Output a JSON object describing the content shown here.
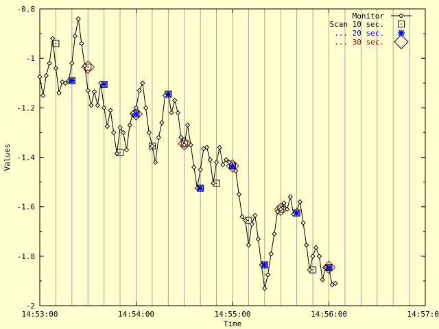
{
  "colors": {
    "background": "#ffffd0",
    "plot_border": "#000000",
    "grid": "#a0a0a0",
    "monitor": "#000000",
    "scan10": "#000000",
    "scan20": "#0000ff",
    "scan30": "#a00000"
  },
  "chart_data": {
    "type": "line",
    "xlabel": "Time",
    "ylabel": "Values",
    "x_range_seconds_of_day": [
      53580,
      53820
    ],
    "ylim": [
      -2,
      -0.8
    ],
    "y_ticks": [
      -0.8,
      -1,
      -1.2,
      -1.4,
      -1.6,
      -1.8,
      -2
    ],
    "y_tick_labels": [
      "-0.8",
      "-1",
      "-1.2",
      "-1.4",
      "-1.6",
      "-1.8",
      "-2"
    ],
    "x_ticks": [
      53580,
      53640,
      53700,
      53760,
      53820
    ],
    "x_tick_labels": [
      "14:53:00",
      "14:54:00",
      "14:55:00",
      "14:56:00",
      "14:57:00"
    ],
    "grid": "vertical lines every 10 seconds",
    "legend_position": "top-right",
    "legend": [
      {
        "label": "Monitor",
        "marker": "diamond-line"
      },
      {
        "label": "Scan 10 sec.",
        "marker": "square"
      },
      {
        "label": "... 20 sec.",
        "marker": "star"
      },
      {
        "label": "... 30 sec.",
        "marker": "big-diamond"
      }
    ],
    "series": [
      {
        "name": "Monitor",
        "points": [
          [
            "14:53:00",
            -1.075
          ],
          [
            "14:53:02",
            -1.15
          ],
          [
            "14:53:04",
            -1.07
          ],
          [
            "14:53:06",
            -1.02
          ],
          [
            "14:53:08",
            -0.92
          ],
          [
            "14:53:10",
            -1.04
          ],
          [
            "14:53:12",
            -1.14
          ],
          [
            "14:53:14",
            -1.095
          ],
          [
            "14:53:16",
            -1.1
          ],
          [
            "14:53:18",
            -1.09
          ],
          [
            "14:53:20",
            -1.02
          ],
          [
            "14:53:22",
            -0.91
          ],
          [
            "14:53:24",
            -0.84
          ],
          [
            "14:53:26",
            -0.94
          ],
          [
            "14:53:28",
            -1.03
          ],
          [
            "14:53:30",
            -1.13
          ],
          [
            "14:53:32",
            -1.19
          ],
          [
            "14:53:34",
            -1.135
          ],
          [
            "14:53:36",
            -1.19
          ],
          [
            "14:53:38",
            -1.1
          ],
          [
            "14:53:40",
            -1.2
          ],
          [
            "14:53:42",
            -1.275
          ],
          [
            "14:53:44",
            -1.21
          ],
          [
            "14:53:46",
            -1.3
          ],
          [
            "14:53:48",
            -1.385
          ],
          [
            "14:53:50",
            -1.28
          ],
          [
            "14:53:52",
            -1.3
          ],
          [
            "14:53:54",
            -1.37
          ],
          [
            "14:53:56",
            -1.27
          ],
          [
            "14:53:58",
            -1.22
          ],
          [
            "14:54:00",
            -1.2
          ],
          [
            "14:54:02",
            -1.13
          ],
          [
            "14:54:04",
            -1.1
          ],
          [
            "14:54:06",
            -1.2
          ],
          [
            "14:54:08",
            -1.3
          ],
          [
            "14:54:10",
            -1.355
          ],
          [
            "14:54:12",
            -1.42
          ],
          [
            "14:54:14",
            -1.32
          ],
          [
            "14:54:16",
            -1.26
          ],
          [
            "14:54:18",
            -1.15
          ],
          [
            "14:54:20",
            -1.145
          ],
          [
            "14:54:22",
            -1.22
          ],
          [
            "14:54:24",
            -1.17
          ],
          [
            "14:54:26",
            -1.22
          ],
          [
            "14:54:28",
            -1.32
          ],
          [
            "14:54:30",
            -1.35
          ],
          [
            "14:54:32",
            -1.27
          ],
          [
            "14:54:34",
            -1.35
          ],
          [
            "14:54:36",
            -1.44
          ],
          [
            "14:54:38",
            -1.525
          ],
          [
            "14:54:40",
            -1.45
          ],
          [
            "14:54:42",
            -1.365
          ],
          [
            "14:54:44",
            -1.36
          ],
          [
            "14:54:46",
            -1.41
          ],
          [
            "14:54:48",
            -1.505
          ],
          [
            "14:54:50",
            -1.42
          ],
          [
            "14:54:52",
            -1.36
          ],
          [
            "14:54:54",
            -1.43
          ],
          [
            "14:54:56",
            -1.41
          ],
          [
            "14:54:58",
            -1.42
          ],
          [
            "14:55:00",
            -1.44
          ],
          [
            "14:55:02",
            -1.455
          ],
          [
            "14:55:04",
            -1.55
          ],
          [
            "14:55:06",
            -1.64
          ],
          [
            "14:55:08",
            -1.655
          ],
          [
            "14:55:10",
            -1.755
          ],
          [
            "14:55:12",
            -1.67
          ],
          [
            "14:55:14",
            -1.635
          ],
          [
            "14:55:16",
            -1.73
          ],
          [
            "14:55:18",
            -1.835
          ],
          [
            "14:55:20",
            -1.93
          ],
          [
            "14:55:22",
            -1.875
          ],
          [
            "14:55:24",
            -1.79
          ],
          [
            "14:55:26",
            -1.71
          ],
          [
            "14:55:28",
            -1.62
          ],
          [
            "14:55:30",
            -1.61
          ],
          [
            "14:55:32",
            -1.585
          ],
          [
            "14:55:34",
            -1.61
          ],
          [
            "14:55:36",
            -1.56
          ],
          [
            "14:55:38",
            -1.63
          ],
          [
            "14:55:40",
            -1.615
          ],
          [
            "14:55:42",
            -1.58
          ],
          [
            "14:55:44",
            -1.665
          ],
          [
            "14:55:46",
            -1.755
          ],
          [
            "14:55:48",
            -1.855
          ],
          [
            "14:55:50",
            -1.8
          ],
          [
            "14:55:52",
            -1.765
          ],
          [
            "14:55:54",
            -1.8
          ],
          [
            "14:55:56",
            -1.895
          ],
          [
            "14:55:58",
            -1.845
          ],
          [
            "14:56:00",
            -1.85
          ],
          [
            "14:56:02",
            -1.915
          ],
          [
            "14:56:04",
            -1.91
          ]
        ]
      },
      {
        "name": "Scan 10 sec.",
        "points": [
          [
            "14:53:10",
            -0.94
          ],
          [
            "14:53:20",
            -1.09
          ],
          [
            "14:53:30",
            -1.035
          ],
          [
            "14:53:40",
            -1.105
          ],
          [
            "14:53:50",
            -1.38
          ],
          [
            "14:54:00",
            -1.225
          ],
          [
            "14:54:10",
            -1.355
          ],
          [
            "14:54:20",
            -1.145
          ],
          [
            "14:54:30",
            -1.345
          ],
          [
            "14:54:40",
            -1.525
          ],
          [
            "14:54:50",
            -1.505
          ],
          [
            "14:55:00",
            -1.435
          ],
          [
            "14:55:10",
            -1.655
          ],
          [
            "14:55:20",
            -1.835
          ],
          [
            "14:55:30",
            -1.61
          ],
          [
            "14:55:40",
            -1.625
          ],
          [
            "14:55:50",
            -1.855
          ],
          [
            "14:56:00",
            -1.845
          ]
        ]
      },
      {
        "name": "... 20 sec.",
        "points": [
          [
            "14:53:20",
            -1.09
          ],
          [
            "14:53:40",
            -1.105
          ],
          [
            "14:54:00",
            -1.225
          ],
          [
            "14:54:20",
            -1.145
          ],
          [
            "14:54:40",
            -1.525
          ],
          [
            "14:55:00",
            -1.435
          ],
          [
            "14:55:20",
            -1.835
          ],
          [
            "14:55:40",
            -1.625
          ],
          [
            "14:56:00",
            -1.845
          ]
        ]
      },
      {
        "name": "... 30 sec.",
        "points": [
          [
            "14:53:30",
            -1.035
          ],
          [
            "14:54:00",
            -1.225
          ],
          [
            "14:54:30",
            -1.345
          ],
          [
            "14:55:00",
            -1.435
          ],
          [
            "14:55:30",
            -1.61
          ],
          [
            "14:56:00",
            -1.845
          ]
        ]
      }
    ]
  }
}
